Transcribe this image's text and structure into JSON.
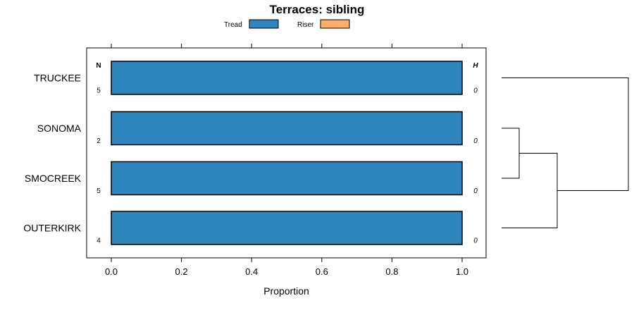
{
  "chart_data": {
    "type": "bar",
    "orientation": "horizontal",
    "stacked": true,
    "title": "Terraces: sibling",
    "xlabel": "Proportion",
    "ylabel": "",
    "xlim": [
      -0.07,
      1.07
    ],
    "x_ticks": [
      "0.0",
      "0.2",
      "0.4",
      "0.6",
      "0.8",
      "1.0"
    ],
    "categories": [
      "TRUCKEE",
      "SONOMA",
      "SMOCREEK",
      "OUTERKIRK"
    ],
    "series": [
      {
        "name": "Tread",
        "values": [
          1.0,
          1.0,
          1.0,
          1.0
        ],
        "color": "#2e86bd"
      },
      {
        "name": "Riser",
        "values": [
          0,
          0,
          0,
          0
        ],
        "color": "#fdae6b"
      }
    ],
    "n_header": "N",
    "n_values": [
      "5",
      "2",
      "5",
      "4"
    ],
    "h_header": "H",
    "h_values": [
      "0",
      "0",
      "0",
      "0"
    ],
    "legend_position": "top",
    "grid": false,
    "dendrogram": {
      "leaves": [
        "TRUCKEE",
        "SONOMA",
        "SMOCREEK",
        "OUTERKIRK"
      ],
      "merges": [
        {
          "left": "SONOMA",
          "right": "SMOCREEK",
          "height": 1
        },
        {
          "left": "SONOMA+SMOCREEK",
          "right": "OUTERKIRK",
          "height": 2
        },
        {
          "left": "TRUCKEE",
          "right": "SONOMA+SMOCREEK+OUTERKIRK",
          "height": 3
        }
      ]
    }
  }
}
